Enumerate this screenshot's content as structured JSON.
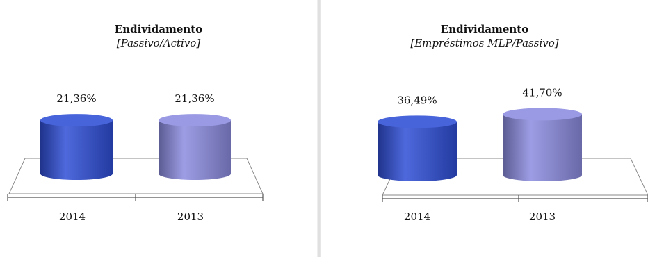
{
  "chart_data": [
    {
      "type": "bar",
      "title": "Endividamento",
      "subtitle": "[Passivo/Activo]",
      "categories": [
        "2014",
        "2013"
      ],
      "values": [
        21.36,
        21.36
      ],
      "value_labels": [
        "21,36%",
        "21,36%"
      ],
      "colors": [
        "#2f4fd6",
        "#8c8ce0"
      ]
    },
    {
      "type": "bar",
      "title": "Endividamento",
      "subtitle": "[Empréstimos MLP/Passivo]",
      "categories": [
        "2014",
        "2013"
      ],
      "values": [
        36.49,
        41.7
      ],
      "value_labels": [
        "36,49%",
        "41,70%"
      ],
      "colors": [
        "#2f4fd6",
        "#8c8ce0"
      ]
    }
  ]
}
